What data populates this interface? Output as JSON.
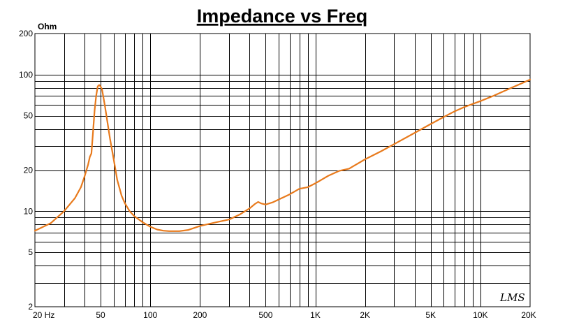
{
  "chart_data": {
    "type": "line",
    "title": "Impedance vs Freq",
    "ylabel": "Ohm",
    "xlabel": "",
    "x_scale": "log",
    "y_scale": "log",
    "xlim": [
      20,
      20000
    ],
    "ylim": [
      2,
      200
    ],
    "grid": true,
    "legend": "none",
    "watermark": "LMS",
    "x_ticks": [
      {
        "value": 20,
        "label": "20  Hz"
      },
      {
        "value": 50,
        "label": "50"
      },
      {
        "value": 100,
        "label": "100"
      },
      {
        "value": 200,
        "label": "200"
      },
      {
        "value": 500,
        "label": "500"
      },
      {
        "value": 1000,
        "label": "1K"
      },
      {
        "value": 2000,
        "label": "2K"
      },
      {
        "value": 5000,
        "label": "5K"
      },
      {
        "value": 10000,
        "label": "10K"
      },
      {
        "value": 20000,
        "label": "20K"
      }
    ],
    "y_ticks": [
      {
        "value": 2,
        "label": "2"
      },
      {
        "value": 5,
        "label": "5"
      },
      {
        "value": 10,
        "label": "10"
      },
      {
        "value": 20,
        "label": "20"
      },
      {
        "value": 50,
        "label": "50"
      },
      {
        "value": 100,
        "label": "100"
      },
      {
        "value": 200,
        "label": "200"
      }
    ],
    "series": [
      {
        "color": "#e87a1c",
        "points": [
          [
            20,
            7.2
          ],
          [
            25,
            8.2
          ],
          [
            30,
            10
          ],
          [
            35,
            12.5
          ],
          [
            38,
            15
          ],
          [
            40,
            18
          ],
          [
            42,
            22
          ],
          [
            43,
            25
          ],
          [
            44,
            26.5
          ],
          [
            45,
            38
          ],
          [
            46,
            55
          ],
          [
            47,
            70
          ],
          [
            48,
            82
          ],
          [
            49,
            84
          ],
          [
            50,
            82
          ],
          [
            51,
            78
          ],
          [
            53,
            60
          ],
          [
            55,
            45
          ],
          [
            57,
            34
          ],
          [
            60,
            24
          ],
          [
            63,
            17
          ],
          [
            67,
            13
          ],
          [
            70,
            11.5
          ],
          [
            75,
            10
          ],
          [
            80,
            9.2
          ],
          [
            90,
            8.3
          ],
          [
            100,
            7.7
          ],
          [
            110,
            7.35
          ],
          [
            120,
            7.2
          ],
          [
            130,
            7.15
          ],
          [
            150,
            7.15
          ],
          [
            170,
            7.3
          ],
          [
            200,
            7.8
          ],
          [
            250,
            8.3
          ],
          [
            300,
            8.7
          ],
          [
            350,
            9.5
          ],
          [
            400,
            10.5
          ],
          [
            430,
            11.3
          ],
          [
            450,
            11.7
          ],
          [
            470,
            11.4
          ],
          [
            500,
            11.2
          ],
          [
            550,
            11.6
          ],
          [
            600,
            12.2
          ],
          [
            700,
            13.3
          ],
          [
            800,
            14.6
          ],
          [
            900,
            15.0
          ],
          [
            1000,
            16.0
          ],
          [
            1200,
            18.2
          ],
          [
            1400,
            19.8
          ],
          [
            1600,
            20.5
          ],
          [
            2000,
            24.0
          ],
          [
            2500,
            27.5
          ],
          [
            3000,
            31
          ],
          [
            4000,
            37.5
          ],
          [
            5000,
            43.5
          ],
          [
            6000,
            49
          ],
          [
            7000,
            54
          ],
          [
            8000,
            58
          ],
          [
            10000,
            64
          ],
          [
            12000,
            70
          ],
          [
            15000,
            79
          ],
          [
            18000,
            87
          ],
          [
            20000,
            92
          ]
        ]
      }
    ]
  }
}
